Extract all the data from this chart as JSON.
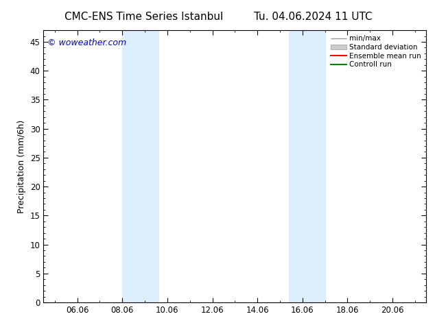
{
  "title_left": "CMC-ENS Time Series Istanbul",
  "title_right": "Tu. 04.06.2024 11 UTC",
  "ylabel": "Precipitation (mm/6h)",
  "watermark": "© woweather.com",
  "watermark_color": "#0000cc",
  "xlim_start": 4.5,
  "xlim_end": 21.5,
  "ylim_bottom": 0,
  "ylim_top": 47,
  "yticks": [
    0,
    5,
    10,
    15,
    20,
    25,
    30,
    35,
    40,
    45
  ],
  "xtick_labels": [
    "06.06",
    "08.06",
    "10.06",
    "12.06",
    "14.06",
    "16.06",
    "18.06",
    "20.06"
  ],
  "xtick_positions": [
    6,
    8,
    10,
    12,
    14,
    16,
    18,
    20
  ],
  "shade_bands": [
    {
      "xmin": 8.0,
      "xmax": 9.6
    },
    {
      "xmin": 15.4,
      "xmax": 17.0
    }
  ],
  "shade_color": "#ddeeff",
  "legend_labels": [
    "min/max",
    "Standard deviation",
    "Ensemble mean run",
    "Controll run"
  ],
  "bg_color": "#ffffff",
  "plot_bg_color": "#ffffff",
  "spine_color": "#000000",
  "tick_color": "#000000",
  "title_fontsize": 11,
  "label_fontsize": 9,
  "tick_fontsize": 8.5
}
